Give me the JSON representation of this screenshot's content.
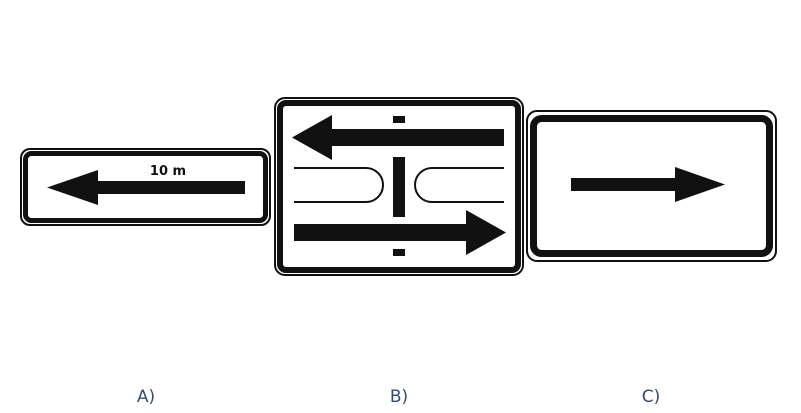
{
  "options": [
    {
      "label": "A)",
      "sign_text": "10 m"
    },
    {
      "label": "B)"
    },
    {
      "label": "C)"
    }
  ],
  "colors": {
    "sign_black": "#111111",
    "sign_white": "#ffffff",
    "label_color": "#2f4d78"
  }
}
